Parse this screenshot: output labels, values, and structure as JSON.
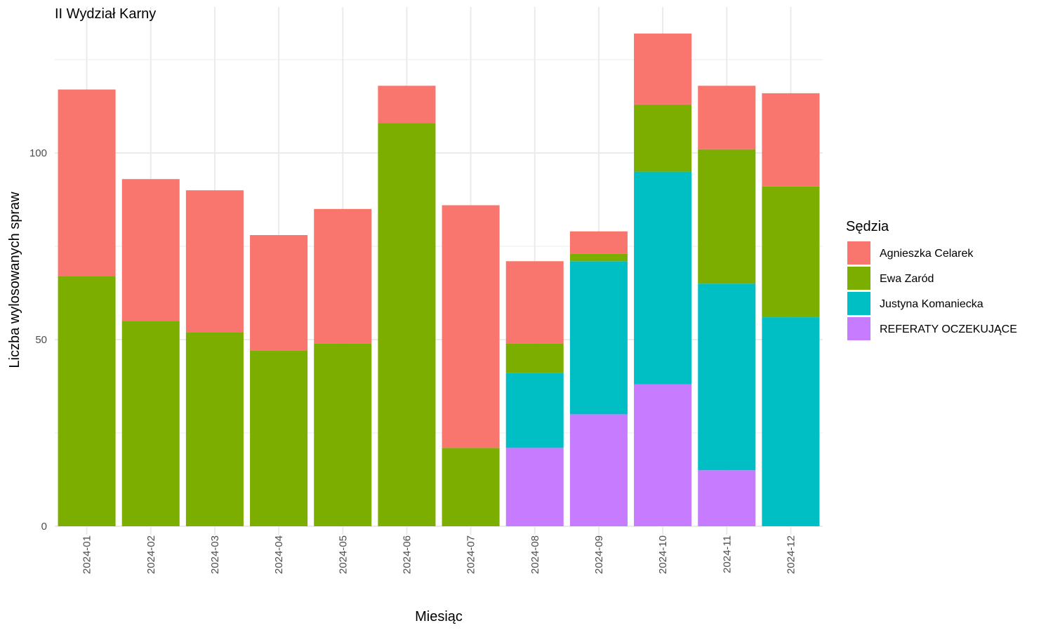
{
  "chart_data": {
    "type": "bar",
    "stacked": true,
    "title": "II Wydział Karny",
    "xlabel": "Miesiąc",
    "ylabel": "Liczba wylosowanych spraw",
    "ylim": [
      0,
      135
    ],
    "yticks": [
      0,
      50,
      100
    ],
    "grid": true,
    "legend_title": "Sędzia",
    "legend_position": "right",
    "categories": [
      "2024-01",
      "2024-02",
      "2024-03",
      "2024-04",
      "2024-05",
      "2024-06",
      "2024-07",
      "2024-08",
      "2024-09",
      "2024-10",
      "2024-11",
      "2024-12"
    ],
    "series": [
      {
        "name": "Agnieszka Celarek",
        "color": "#F8766D",
        "values": [
          50,
          38,
          38,
          31,
          36,
          10,
          65,
          22,
          6,
          19,
          17,
          25
        ]
      },
      {
        "name": "Ewa Zaród",
        "color": "#7CAE00",
        "values": [
          67,
          55,
          52,
          47,
          49,
          108,
          21,
          8,
          2,
          18,
          36,
          35
        ]
      },
      {
        "name": "Justyna Komaniecka",
        "color": "#00BFC4",
        "values": [
          0,
          0,
          0,
          0,
          0,
          0,
          0,
          20,
          41,
          57,
          50,
          56
        ]
      },
      {
        "name": "REFERATY OCZEKUJĄCE",
        "color": "#C77CFF",
        "values": [
          0,
          0,
          0,
          0,
          0,
          0,
          0,
          21,
          30,
          38,
          15,
          0
        ]
      }
    ]
  }
}
